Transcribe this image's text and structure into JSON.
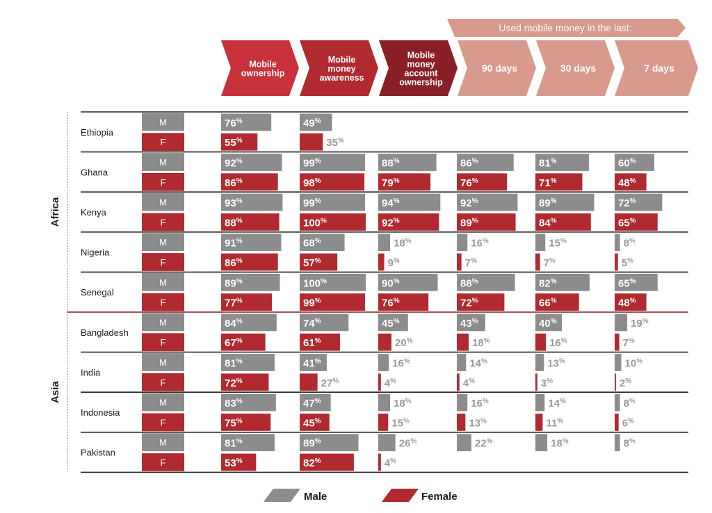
{
  "super_header": "Used mobile money in the last:",
  "columns": [
    {
      "label": [
        "Mobile",
        "ownership"
      ],
      "color": "#c8323a"
    },
    {
      "label": [
        "Mobile",
        "money",
        "awareness"
      ],
      "color": "#b02a30"
    },
    {
      "label": [
        "Mobile",
        "money",
        "account",
        "ownership"
      ],
      "color": "#8a1f26"
    },
    {
      "label": [
        "90 days"
      ],
      "color": "#d99a8e"
    },
    {
      "label": [
        "30 days"
      ],
      "color": "#d99a8e"
    },
    {
      "label": [
        "7 days"
      ],
      "color": "#d99a8e"
    }
  ],
  "regions": [
    {
      "name": "Africa",
      "countries": [
        "Ethiopia",
        "Ghana",
        "Kenya",
        "Nigeria",
        "Senegal"
      ]
    },
    {
      "name": "Asia",
      "countries": [
        "Bangladesh",
        "India",
        "Indonesia",
        "Pakistan"
      ]
    }
  ],
  "gender_labels": {
    "male": "M",
    "female": "F"
  },
  "colors": {
    "male": "#8c8c8c",
    "female": "#b02a30",
    "header_light": "#d99a8e",
    "divider": "#222222",
    "region_divider": "#7a1a1e"
  },
  "legend": {
    "male": "Male",
    "female": "Female"
  },
  "chart_data": {
    "type": "bar",
    "orientation": "horizontal",
    "value_unit": "%",
    "xlim": [
      0,
      100
    ],
    "columns": [
      "Mobile ownership",
      "Mobile money awareness",
      "Mobile money account ownership",
      "90 days",
      "30 days",
      "7 days"
    ],
    "rows": [
      {
        "country": "Ethiopia",
        "region": "Africa",
        "M": [
          76,
          49,
          null,
          null,
          null,
          null
        ],
        "F": [
          55,
          35,
          null,
          null,
          null,
          null
        ]
      },
      {
        "country": "Ghana",
        "region": "Africa",
        "M": [
          92,
          99,
          88,
          86,
          81,
          60
        ],
        "F": [
          86,
          98,
          79,
          76,
          71,
          48
        ]
      },
      {
        "country": "Kenya",
        "region": "Africa",
        "M": [
          93,
          99,
          94,
          92,
          89,
          72
        ],
        "F": [
          88,
          100,
          92,
          89,
          84,
          65
        ]
      },
      {
        "country": "Nigeria",
        "region": "Africa",
        "M": [
          91,
          68,
          18,
          16,
          15,
          8
        ],
        "F": [
          86,
          57,
          9,
          7,
          7,
          5
        ]
      },
      {
        "country": "Senegal",
        "region": "Africa",
        "M": [
          89,
          100,
          90,
          88,
          82,
          65
        ],
        "F": [
          77,
          99,
          76,
          72,
          66,
          48
        ]
      },
      {
        "country": "Bangladesh",
        "region": "Asia",
        "M": [
          84,
          74,
          45,
          43,
          40,
          19
        ],
        "F": [
          67,
          61,
          20,
          18,
          16,
          7
        ]
      },
      {
        "country": "India",
        "region": "Asia",
        "M": [
          81,
          41,
          16,
          14,
          13,
          10
        ],
        "F": [
          72,
          27,
          4,
          4,
          3,
          2
        ]
      },
      {
        "country": "Indonesia",
        "region": "Asia",
        "M": [
          83,
          47,
          18,
          16,
          14,
          8
        ],
        "F": [
          75,
          45,
          15,
          13,
          11,
          6
        ]
      },
      {
        "country": "Pakistan",
        "region": "Asia",
        "M": [
          81,
          89,
          26,
          22,
          18,
          8
        ],
        "F": [
          53,
          82,
          4,
          null,
          null,
          null
        ]
      }
    ]
  }
}
